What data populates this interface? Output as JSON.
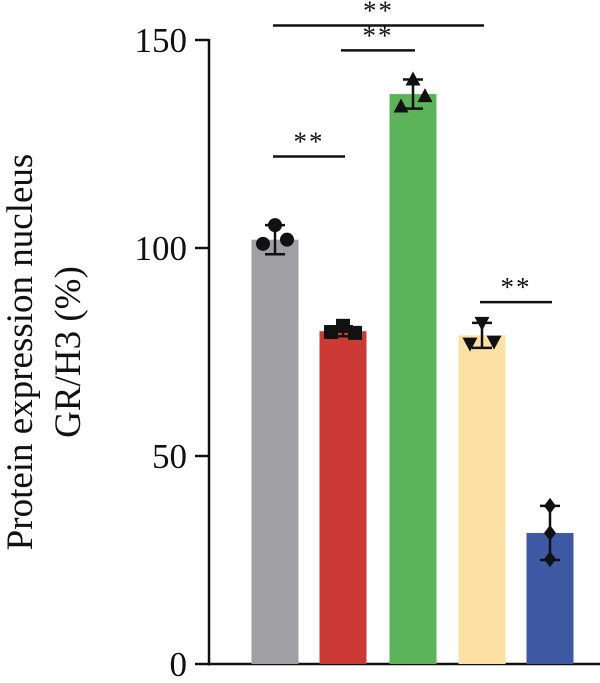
{
  "chart_data": {
    "type": "bar",
    "ylabel_lines": [
      "Protein expression nucleus",
      "GR/H3 (%)"
    ],
    "ylim": [
      0,
      150
    ],
    "yticks": [
      0,
      50,
      100,
      150
    ],
    "grid": false,
    "legend": "none",
    "bars": [
      {
        "value": 102,
        "error": 3.5,
        "color": "#a0a0a4",
        "marker": "circle",
        "points": [
          101,
          105.5,
          102
        ]
      },
      {
        "value": 80,
        "error": 1.2,
        "color": "#cc3a35",
        "marker": "square",
        "points": [
          79.8,
          81.3,
          79.6
        ]
      },
      {
        "value": 137,
        "error": 3.5,
        "color": "#5cb35a",
        "marker": "triangle-up",
        "points": [
          134,
          140.5,
          136.5
        ]
      },
      {
        "value": 79,
        "error": 3,
        "color": "#fde0a3",
        "marker": "triangle-down",
        "points": [
          77,
          82,
          77.5
        ]
      },
      {
        "value": 31.5,
        "error": 6.5,
        "color": "#3f58a3",
        "marker": "diamond",
        "points": [
          25.2,
          38,
          31.5
        ]
      }
    ],
    "significance": [
      {
        "from": 0,
        "to": 1,
        "label": "**",
        "y": 122
      },
      {
        "from": 1,
        "to": 2,
        "label": "**",
        "y": 147.5
      },
      {
        "from": 0,
        "to": 3,
        "label": "**",
        "y": 153.5
      },
      {
        "from": 3,
        "to": 4,
        "label": "**",
        "y": 87
      }
    ]
  }
}
